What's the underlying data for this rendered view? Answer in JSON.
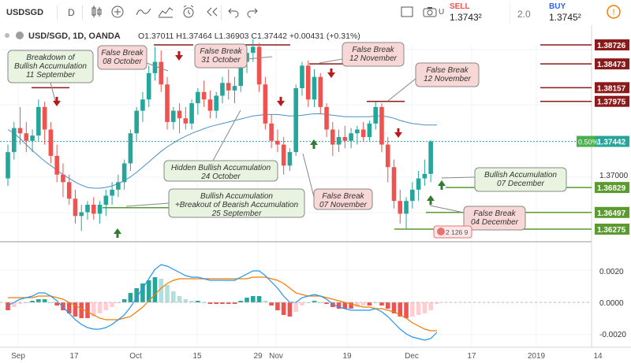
{
  "toolbar": {
    "symbol": "USDSGD",
    "interval": "D",
    "sell_label": "SELL",
    "sell_price": "1.3743²",
    "spread": "2.0",
    "buy_label": "BUY",
    "buy_price": "1.3745²",
    "more_label": "U"
  },
  "legend": {
    "title": "USD/SGD, 1D, OANDA",
    "ohlc": "O1.37011  H1.37464  L1.36903  C1.37442  +0.00431 (+0.31%)"
  },
  "price_labels": [
    {
      "value": 1.38726,
      "text": "1.38726"
    },
    {
      "value": 1.38473,
      "text": "1.38473"
    },
    {
      "value": 1.38157,
      "text": "1.38157"
    },
    {
      "value": 1.37975,
      "text": "1.37975"
    },
    {
      "value": 1.37442,
      "text": "1.37442",
      "pct": "0.50%"
    },
    {
      "value": 1.37,
      "text": "1.37000",
      "plain": true
    },
    {
      "value": 1.36829,
      "text": "1.36829"
    },
    {
      "value": 1.36497,
      "text": "1.36497"
    },
    {
      "value": 1.36275,
      "text": "1.36275"
    }
  ],
  "macd_labels": [
    {
      "value": 0.002,
      "text": "0.0020"
    },
    {
      "value": 0.0,
      "text": "0.0000"
    },
    {
      "value": -0.002,
      "text": "-0.0020"
    }
  ],
  "x_labels": [
    "Sep",
    "17",
    "Oct",
    "15",
    "29",
    "Nov",
    "19",
    "Dec",
    "17",
    "2019",
    "14"
  ],
  "annotations": [
    {
      "id": "breakdown",
      "lines": [
        "Breakdown of",
        "Bullish Accumulation",
        "11 September"
      ]
    },
    {
      "id": "fb-oct8",
      "lines": [
        "False Break",
        "08 October"
      ]
    },
    {
      "id": "fb-oct31",
      "lines": [
        "False Break",
        "31 October"
      ]
    },
    {
      "id": "fb-nov12a",
      "lines": [
        "False Break",
        "12 November"
      ]
    },
    {
      "id": "fb-nov12b",
      "lines": [
        "False Break",
        "12 November"
      ]
    },
    {
      "id": "hidden-acc",
      "lines": [
        "Hidden Bullish Accumulation",
        "24 October"
      ]
    },
    {
      "id": "bull-breakout",
      "lines": [
        "Bullish Accumulation",
        "+Breakout of Bearish Accumulation",
        "25 September"
      ]
    },
    {
      "id": "fb-nov7",
      "lines": [
        "False Break",
        "07 November"
      ]
    },
    {
      "id": "bull-dec7",
      "lines": [
        "Bullish Accumulation",
        "07 December"
      ]
    },
    {
      "id": "fb-dec4",
      "lines": [
        "False Break",
        "04 December"
      ]
    }
  ],
  "event_badge": "2 126 9",
  "colors": {
    "bull": "#26a69a",
    "bear": "#ef5350",
    "ma": "#4a90c8",
    "macd": "#2196f3",
    "signal": "#f57c00",
    "note_bg": "#f8d7d7",
    "note_bg2": "#fbeaea",
    "green_note": "#e8f3e0",
    "level": "#5a9a2e",
    "res_label": "#8b1a1a"
  },
  "chart_data": {
    "type": "candlestick",
    "symbol": "USD/SGD",
    "timeframe": "1D",
    "source": "OANDA",
    "dates": [
      "Sep 3",
      "Sep 4",
      "Sep 5",
      "Sep 6",
      "Sep 7",
      "Sep 10",
      "Sep 11",
      "Sep 12",
      "Sep 13",
      "Sep 14",
      "Sep 17",
      "Sep 18",
      "Sep 19",
      "Sep 20",
      "Sep 21",
      "Sep 24",
      "Sep 25",
      "Sep 26",
      "Sep 27",
      "Sep 28",
      "Oct 1",
      "Oct 2",
      "Oct 3",
      "Oct 4",
      "Oct 5",
      "Oct 8",
      "Oct 9",
      "Oct 10",
      "Oct 11",
      "Oct 12",
      "Oct 15",
      "Oct 16",
      "Oct 17",
      "Oct 18",
      "Oct 19",
      "Oct 22",
      "Oct 23",
      "Oct 24",
      "Oct 25",
      "Oct 26",
      "Oct 29",
      "Oct 30",
      "Oct 31",
      "Nov 1",
      "Nov 2",
      "Nov 5",
      "Nov 6",
      "Nov 7",
      "Nov 8",
      "Nov 9",
      "Nov 12",
      "Nov 13",
      "Nov 14",
      "Nov 15",
      "Nov 16",
      "Nov 19",
      "Nov 20",
      "Nov 21",
      "Nov 22",
      "Nov 23",
      "Nov 26",
      "Nov 27",
      "Nov 28",
      "Nov 29",
      "Nov 30",
      "Dec 3",
      "Dec 4",
      "Dec 5",
      "Dec 6",
      "Dec 7",
      "Dec 10"
    ],
    "ohlc": [
      [
        1.3695,
        1.374,
        1.3685,
        1.373
      ],
      [
        1.373,
        1.377,
        1.372,
        1.3762
      ],
      [
        1.3762,
        1.379,
        1.374,
        1.3755
      ],
      [
        1.3755,
        1.377,
        1.373,
        1.3745
      ],
      [
        1.3745,
        1.376,
        1.373,
        1.3752
      ],
      [
        1.3752,
        1.38,
        1.3745,
        1.379
      ],
      [
        1.379,
        1.3797,
        1.374,
        1.376
      ],
      [
        1.376,
        1.377,
        1.3715,
        1.3725
      ],
      [
        1.3725,
        1.374,
        1.369,
        1.37
      ],
      [
        1.37,
        1.3715,
        1.367,
        1.369
      ],
      [
        1.369,
        1.37,
        1.366,
        1.3668
      ],
      [
        1.3668,
        1.368,
        1.3635,
        1.3645
      ],
      [
        1.3645,
        1.366,
        1.3625,
        1.365
      ],
      [
        1.365,
        1.3665,
        1.364,
        1.366
      ],
      [
        1.366,
        1.367,
        1.364,
        1.3648
      ],
      [
        1.3648,
        1.3665,
        1.3635,
        1.366
      ],
      [
        1.366,
        1.368,
        1.3645,
        1.3672
      ],
      [
        1.3672,
        1.369,
        1.366,
        1.368
      ],
      [
        1.368,
        1.37,
        1.367,
        1.369
      ],
      [
        1.369,
        1.372,
        1.368,
        1.3715
      ],
      [
        1.3715,
        1.376,
        1.3705,
        1.3755
      ],
      [
        1.3755,
        1.379,
        1.3745,
        1.3785
      ],
      [
        1.3785,
        1.381,
        1.377,
        1.38
      ],
      [
        1.38,
        1.3845,
        1.379,
        1.3835
      ],
      [
        1.3835,
        1.387,
        1.3825,
        1.385
      ],
      [
        1.385,
        1.3865,
        1.381,
        1.382
      ],
      [
        1.382,
        1.383,
        1.376,
        1.377
      ],
      [
        1.377,
        1.379,
        1.376,
        1.3785
      ],
      [
        1.3785,
        1.3795,
        1.3755,
        1.3775
      ],
      [
        1.3775,
        1.379,
        1.376,
        1.3768
      ],
      [
        1.3768,
        1.38,
        1.376,
        1.3795
      ],
      [
        1.3795,
        1.3815,
        1.378,
        1.381
      ],
      [
        1.381,
        1.3825,
        1.379,
        1.38
      ],
      [
        1.38,
        1.3812,
        1.3775,
        1.3785
      ],
      [
        1.3785,
        1.381,
        1.3775,
        1.3805
      ],
      [
        1.3805,
        1.383,
        1.3795,
        1.3822
      ],
      [
        1.3822,
        1.384,
        1.38,
        1.3812
      ],
      [
        1.3812,
        1.383,
        1.3795,
        1.3818
      ],
      [
        1.3818,
        1.386,
        1.381,
        1.385
      ],
      [
        1.385,
        1.387,
        1.3835,
        1.3862
      ],
      [
        1.3862,
        1.388,
        1.385,
        1.387
      ],
      [
        1.387,
        1.3875,
        1.381,
        1.382
      ],
      [
        1.382,
        1.383,
        1.376,
        1.3768
      ],
      [
        1.3768,
        1.378,
        1.3735,
        1.3745
      ],
      [
        1.3745,
        1.376,
        1.373,
        1.374
      ],
      [
        1.374,
        1.375,
        1.37,
        1.3712
      ],
      [
        1.3712,
        1.3735,
        1.3705,
        1.373
      ],
      [
        1.373,
        1.382,
        1.3725,
        1.3815
      ],
      [
        1.3815,
        1.385,
        1.3805,
        1.3845
      ],
      [
        1.3845,
        1.3852,
        1.379,
        1.38
      ],
      [
        1.38,
        1.384,
        1.379,
        1.383
      ],
      [
        1.383,
        1.3835,
        1.378,
        1.379
      ],
      [
        1.379,
        1.3795,
        1.375,
        1.376
      ],
      [
        1.376,
        1.377,
        1.3725,
        1.374
      ],
      [
        1.374,
        1.376,
        1.373,
        1.375
      ],
      [
        1.375,
        1.3765,
        1.3735,
        1.3745
      ],
      [
        1.3745,
        1.3762,
        1.3735,
        1.3755
      ],
      [
        1.3755,
        1.3765,
        1.374,
        1.376
      ],
      [
        1.376,
        1.377,
        1.3745,
        1.375
      ],
      [
        1.375,
        1.3772,
        1.3745,
        1.3768
      ],
      [
        1.3768,
        1.3797,
        1.376,
        1.379
      ],
      [
        1.379,
        1.3795,
        1.373,
        1.374
      ],
      [
        1.374,
        1.375,
        1.369,
        1.371
      ],
      [
        1.371,
        1.372,
        1.3655,
        1.3665
      ],
      [
        1.3665,
        1.368,
        1.3635,
        1.3648
      ],
      [
        1.3648,
        1.367,
        1.3627,
        1.3665
      ],
      [
        1.3665,
        1.369,
        1.3655,
        1.368
      ],
      [
        1.368,
        1.3705,
        1.3665,
        1.3695
      ],
      [
        1.3695,
        1.372,
        1.3685,
        1.3701
      ],
      [
        1.3701,
        1.3746,
        1.369,
        1.3744
      ]
    ],
    "ma": [
      1.376,
      1.3755,
      1.3748,
      1.374,
      1.3732,
      1.3725,
      1.3718,
      1.3712,
      1.3706,
      1.37,
      1.3695,
      1.369,
      1.3686,
      1.3683,
      1.3682,
      1.3682,
      1.3683,
      1.3685,
      1.3688,
      1.3692,
      1.3697,
      1.3703,
      1.371,
      1.3717,
      1.3724,
      1.3731,
      1.3737,
      1.3742,
      1.3747,
      1.3751,
      1.3755,
      1.3758,
      1.3761,
      1.3764,
      1.3766,
      1.3768,
      1.377,
      1.3772,
      1.3774,
      1.3776,
      1.3778,
      1.3779,
      1.378,
      1.378,
      1.378,
      1.3779,
      1.3778,
      1.3778,
      1.3779,
      1.378,
      1.3781,
      1.3781,
      1.378,
      1.3779,
      1.3778,
      1.3777,
      1.3777,
      1.3777,
      1.3777,
      1.3777,
      1.3778,
      1.3778,
      1.3777,
      1.3775,
      1.3772,
      1.377,
      1.3768,
      1.3767,
      1.3766,
      1.3766,
      1.3766
    ],
    "macd": {
      "ylim": [
        -0.0028,
        0.0028
      ],
      "macd": [
        -0.0002,
        0.0,
        0.0002,
        0.0003,
        0.0004,
        0.0006,
        0.0006,
        0.0004,
        0.0001,
        -0.0003,
        -0.0007,
        -0.0011,
        -0.0014,
        -0.0016,
        -0.0017,
        -0.0017,
        -0.0016,
        -0.0014,
        -0.0011,
        -0.0008,
        -0.0003,
        0.0003,
        0.0009,
        0.0015,
        0.0021,
        0.0024,
        0.0023,
        0.0021,
        0.0019,
        0.0017,
        0.0016,
        0.0016,
        0.0015,
        0.0014,
        0.0014,
        0.0014,
        0.0014,
        0.0014,
        0.0016,
        0.0018,
        0.002,
        0.002,
        0.0017,
        0.0013,
        0.0009,
        0.0004,
        0.0,
        0.0,
        0.0003,
        0.0004,
        0.0005,
        0.0004,
        0.0002,
        -0.0001,
        -0.0003,
        -0.0004,
        -0.0005,
        -0.0005,
        -0.0005,
        -0.0005,
        -0.0004,
        -0.0006,
        -0.0009,
        -0.0013,
        -0.0017,
        -0.002,
        -0.0022,
        -0.0023,
        -0.0024,
        -0.0023,
        -0.0019
      ],
      "signal": [
        0.0003,
        0.0003,
        0.0003,
        0.0003,
        0.0003,
        0.0004,
        0.0004,
        0.0004,
        0.0003,
        0.0002,
        0.0,
        -0.0002,
        -0.0004,
        -0.0006,
        -0.0008,
        -0.001,
        -0.0011,
        -0.0011,
        -0.0011,
        -0.001,
        -0.0009,
        -0.0006,
        -0.0003,
        0.0001,
        0.0005,
        0.0009,
        0.0012,
        0.0014,
        0.0015,
        0.0015,
        0.0015,
        0.0015,
        0.0015,
        0.0015,
        0.0015,
        0.0015,
        0.0015,
        0.0015,
        0.0015,
        0.0015,
        0.0016,
        0.0016,
        0.0016,
        0.0015,
        0.0014,
        0.0012,
        0.0009,
        0.0006,
        0.0005,
        0.0004,
        0.0004,
        0.0004,
        0.0003,
        0.0002,
        0.0001,
        0.0,
        -0.0001,
        -0.0002,
        -0.0003,
        -0.0003,
        -0.0004,
        -0.0004,
        -0.0005,
        -0.0006,
        -0.0008,
        -0.001,
        -0.0013,
        -0.0015,
        -0.0017,
        -0.0018,
        -0.0018
      ]
    }
  }
}
